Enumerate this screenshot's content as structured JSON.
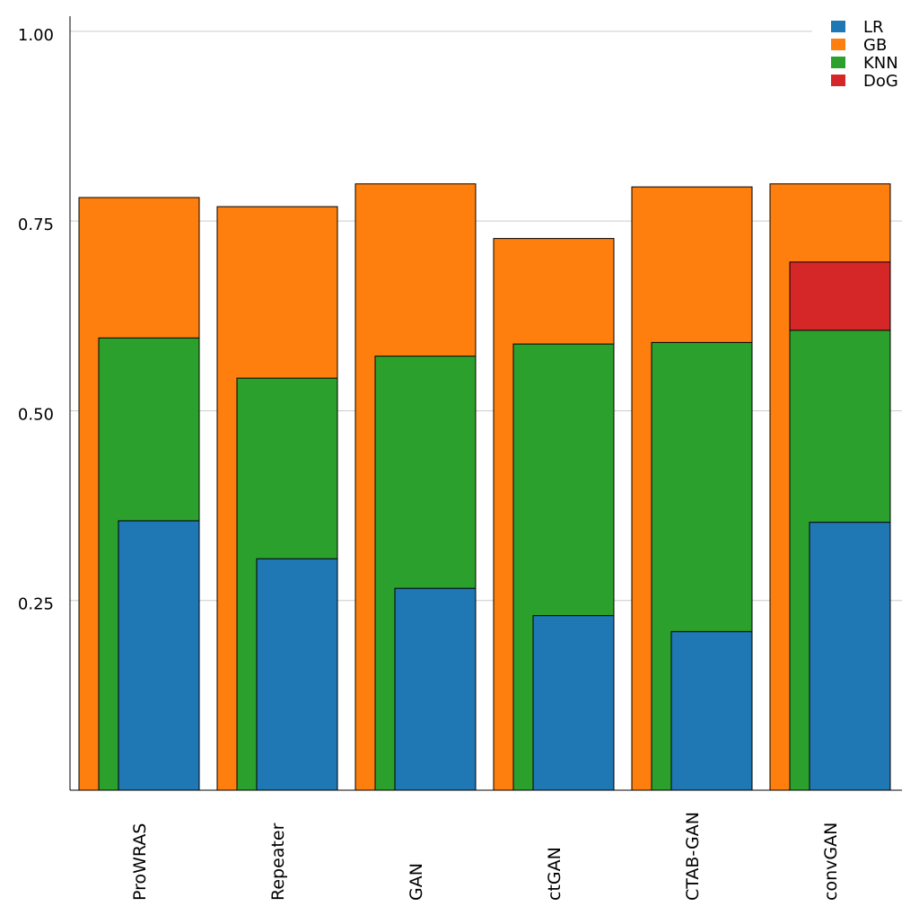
{
  "chart_data": {
    "type": "bar",
    "title": "",
    "xlabel": "",
    "ylabel": "",
    "categories": [
      "ProWRAS",
      "Repeater",
      "GAN",
      "ctGAN",
      "CTAB-GAN",
      "convGAN"
    ],
    "series": [
      {
        "name": "LR",
        "color": "#1f77b4",
        "values": [
          0.355,
          0.305,
          0.266,
          0.23,
          0.209,
          0.353
        ]
      },
      {
        "name": "GB",
        "color": "#ff7f0e",
        "values": [
          0.781,
          0.769,
          0.799,
          0.727,
          0.795,
          0.799
        ]
      },
      {
        "name": "KNN",
        "color": "#2ca02c",
        "values": [
          0.596,
          0.543,
          0.572,
          0.588,
          0.59,
          0.606
        ]
      },
      {
        "name": "DoG",
        "color": "#d62728",
        "values": [
          null,
          null,
          null,
          null,
          null,
          0.696
        ]
      }
    ],
    "ylim": [
      0,
      1.02
    ],
    "yticks": [
      0.25,
      0.5,
      0.75,
      1.0
    ],
    "ytick_labels": [
      "0.25",
      "0.50",
      "0.75",
      "1.00"
    ],
    "grid": "horizontal",
    "legend_position": "top-right",
    "legend_order": [
      "LR",
      "GB",
      "KNN",
      "DoG"
    ]
  }
}
